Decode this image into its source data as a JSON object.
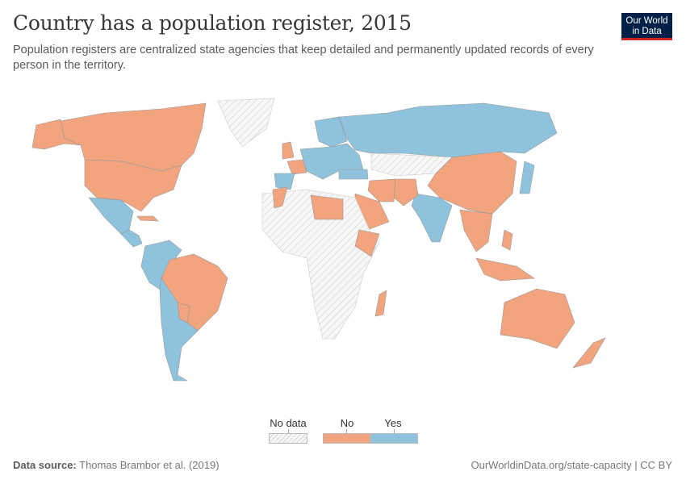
{
  "header": {
    "title": "Country has a population register, 2015",
    "subtitle": "Population registers are centralized state agencies that keep detailed and permanently updated records of every person in the territory.",
    "logo": "Our World in Data"
  },
  "legend": {
    "no_data": "No data",
    "no": "No",
    "yes": "Yes"
  },
  "colors": {
    "no": "#f1a47e",
    "yes": "#8fc3dd",
    "no_data": "#f4f4f4",
    "border": "#999999"
  },
  "map_data": [
    {
      "country": "Canada",
      "value": "No"
    },
    {
      "country": "Alaska (USA)",
      "value": "No"
    },
    {
      "country": "Greenland",
      "value": "No data"
    },
    {
      "country": "United States",
      "value": "No"
    },
    {
      "country": "Mexico",
      "value": "Yes"
    },
    {
      "country": "Central America",
      "value": "Yes"
    },
    {
      "country": "Cuba",
      "value": "No"
    },
    {
      "country": "Colombia/Venezuela/Ecuador/Peru",
      "value": "Yes"
    },
    {
      "country": "Brazil",
      "value": "No"
    },
    {
      "country": "Paraguay",
      "value": "No"
    },
    {
      "country": "Argentina/Chile/Bolivia",
      "value": "Yes"
    },
    {
      "country": "Scandinavia",
      "value": "Yes"
    },
    {
      "country": "Central Europe",
      "value": "Yes"
    },
    {
      "country": "United Kingdom",
      "value": "No"
    },
    {
      "country": "France",
      "value": "No"
    },
    {
      "country": "Spain",
      "value": "Yes"
    },
    {
      "country": "Russia",
      "value": "Yes"
    },
    {
      "country": "Central Asia",
      "value": "No data"
    },
    {
      "country": "China",
      "value": "No"
    },
    {
      "country": "Japan",
      "value": "Yes"
    },
    {
      "country": "India",
      "value": "Yes"
    },
    {
      "country": "Pakistan/Afghanistan",
      "value": "No"
    },
    {
      "country": "Iran",
      "value": "No"
    },
    {
      "country": "Turkey",
      "value": "Yes"
    },
    {
      "country": "Saudi Arabia",
      "value": "No"
    },
    {
      "country": "Southeast Asia",
      "value": "No"
    },
    {
      "country": "Africa",
      "value": "No data"
    },
    {
      "country": "Morocco",
      "value": "No"
    },
    {
      "country": "Libya/Egypt",
      "value": "No"
    },
    {
      "country": "Ethiopia",
      "value": "No"
    },
    {
      "country": "Madagascar",
      "value": "No"
    },
    {
      "country": "Indonesia",
      "value": "No"
    },
    {
      "country": "Philippines",
      "value": "No"
    },
    {
      "country": "Australia",
      "value": "No"
    },
    {
      "country": "New Zealand",
      "value": "No"
    }
  ],
  "footer": {
    "source_label": "Data source:",
    "source": "Thomas Brambor et al. (2019)",
    "url": "OurWorldinData.org/state-capacity | CC BY"
  }
}
